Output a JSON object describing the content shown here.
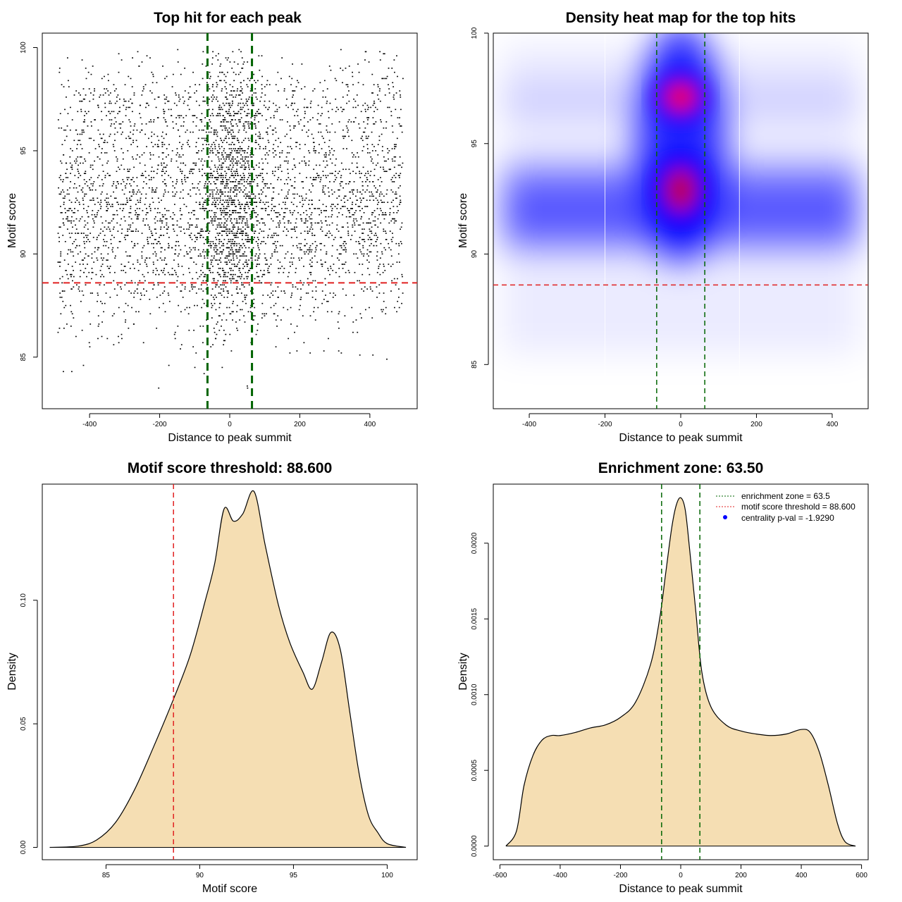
{
  "colors": {
    "threshold_line": "#e02020",
    "zone_line": "#006400",
    "density_fill": "#f5deb3",
    "heat_low": "#ffffff",
    "heat_mid": "#0000ff",
    "heat_high": "#ff0000",
    "scatter_point": "#000000"
  },
  "chart_data": [
    {
      "type": "scatter",
      "title": "Top hit for each peak",
      "xlabel": "Distance to peak summit",
      "ylabel": "Motif score",
      "xlim": [
        -535,
        535
      ],
      "ylim": [
        82.5,
        100.7
      ],
      "xticks": [
        -400,
        -200,
        0,
        200,
        400
      ],
      "yticks": [
        85,
        90,
        95,
        100
      ],
      "threshold": 88.6,
      "zone": [
        -63.5,
        63.5
      ],
      "point_x_range": [
        -490,
        495
      ],
      "point_y_range": [
        83.5,
        100
      ],
      "grid": false
    },
    {
      "type": "heatmap",
      "title": "Density heat map for the top hits",
      "xlabel": "Distance to peak summit",
      "ylabel": "Motif score",
      "xlim": [
        -495,
        495
      ],
      "ylim": [
        83,
        100
      ],
      "xticks": [
        -400,
        -200,
        0,
        200,
        400
      ],
      "yticks": [
        85,
        90,
        95,
        100
      ],
      "threshold": 88.6,
      "zone": [
        -63.5,
        63.5
      ],
      "hotspots": [
        {
          "x": 0,
          "y": 97.1,
          "level": "high"
        },
        {
          "x": 0,
          "y": 92.9,
          "level": "high"
        }
      ],
      "grid": false
    },
    {
      "type": "area",
      "title": "Motif score threshold: 88.600",
      "xlabel": "Motif score",
      "ylabel": "Density",
      "xlim": [
        81.6,
        101.6
      ],
      "ylim": [
        -0.005,
        0.147
      ],
      "xticks": [
        85,
        90,
        95,
        100
      ],
      "yticks": [
        0.0,
        0.05,
        0.1
      ],
      "ytick_labels": [
        "0.00",
        "0.05",
        "0.10"
      ],
      "threshold": 88.6,
      "x": [
        82,
        83.5,
        84.5,
        85.5,
        86.5,
        87.5,
        88.6,
        89.5,
        90.3,
        90.8,
        91.3,
        91.8,
        92.3,
        92.9,
        93.5,
        94.2,
        94.8,
        95.5,
        96.0,
        96.5,
        97.0,
        97.5,
        98.0,
        98.5,
        99.0,
        99.5,
        100.0,
        101.0
      ],
      "y": [
        0.0,
        0.0005,
        0.003,
        0.01,
        0.023,
        0.04,
        0.06,
        0.078,
        0.1,
        0.115,
        0.137,
        0.132,
        0.135,
        0.144,
        0.122,
        0.098,
        0.083,
        0.071,
        0.064,
        0.075,
        0.087,
        0.08,
        0.055,
        0.03,
        0.013,
        0.006,
        0.0015,
        0.0
      ],
      "grid": false
    },
    {
      "type": "area",
      "title": "Enrichment zone: 63.50",
      "xlabel": "Distance to peak summit",
      "ylabel": "Density",
      "xlim": [
        -622,
        622
      ],
      "ylim": [
        -9e-05,
        0.00239
      ],
      "xticks": [
        -600,
        -400,
        -200,
        0,
        200,
        400,
        600
      ],
      "yticks": [
        0.0,
        0.0005,
        0.001,
        0.0015,
        0.002
      ],
      "ytick_labels": [
        "0.0000",
        "0.0005",
        "0.0010",
        "0.0015",
        "0.0020"
      ],
      "zone": [
        -63.5,
        63.5
      ],
      "x": [
        -580,
        -545,
        -520,
        -490,
        -460,
        -430,
        -400,
        -350,
        -300,
        -250,
        -200,
        -150,
        -100,
        -70,
        -50,
        -30,
        -15,
        0,
        15,
        30,
        50,
        70,
        100,
        150,
        200,
        250,
        300,
        350,
        400,
        430,
        460,
        490,
        520,
        545,
        580
      ],
      "y": [
        0.0,
        0.0001,
        0.0004,
        0.0006,
        0.0007,
        0.00073,
        0.00073,
        0.00075,
        0.00078,
        0.0008,
        0.00085,
        0.00095,
        0.0012,
        0.0015,
        0.0018,
        0.0021,
        0.00225,
        0.0023,
        0.00222,
        0.00195,
        0.00155,
        0.00115,
        0.00092,
        0.0008,
        0.00076,
        0.00074,
        0.00073,
        0.00074,
        0.00077,
        0.00075,
        0.00062,
        0.0004,
        0.00015,
        3e-05,
        0.0
      ],
      "legend": {
        "position": "top-right",
        "entries": [
          {
            "label": "enrichment zone = 63.5",
            "style": "dotted",
            "color": "#006400"
          },
          {
            "label": "motif score threshold = 88.600",
            "style": "dotted",
            "color": "#e02020"
          },
          {
            "label": "centrality p-val = -1.9290",
            "style": "point",
            "color": "#0000ff"
          }
        ]
      },
      "grid": false
    }
  ]
}
